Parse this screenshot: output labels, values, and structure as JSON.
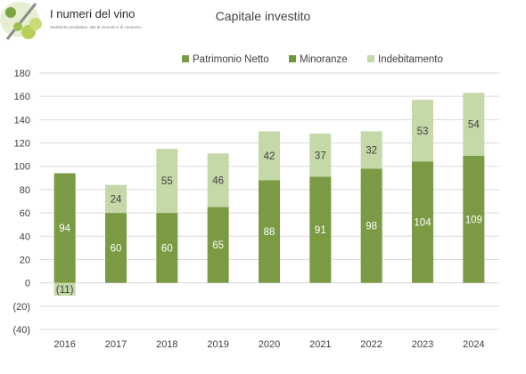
{
  "logo": {
    "title": "I numeri del vino",
    "tagline": "Statistiche produttive, dati di mercato e di consumo.",
    "mark_icon": "percent-grapes-icon"
  },
  "colors": {
    "patrimonio": "#7a9a44",
    "minoranze": "#6a9b3b",
    "indebitamento": "#c5d8a8",
    "grid": "#d9d9d9",
    "axis_text": "#404040"
  },
  "chart_data": {
    "type": "bar",
    "stacked": true,
    "title": "Capitale investito",
    "xlabel": "",
    "ylabel": "",
    "categories": [
      "2016",
      "2017",
      "2018",
      "2019",
      "2020",
      "2021",
      "2022",
      "2023",
      "2024"
    ],
    "series": [
      {
        "name": "Patrimonio Netto",
        "values": [
          94,
          60,
          60,
          65,
          88,
          91,
          98,
          104,
          109
        ],
        "labels": [
          "94",
          "60",
          "60",
          "65",
          "88",
          "91",
          "98",
          "104",
          "109"
        ],
        "color": "#7a9a44"
      },
      {
        "name": "Minoranze",
        "values": [
          0,
          0,
          0,
          0,
          0,
          0,
          0,
          0,
          0
        ],
        "labels": [
          "",
          "",
          "",
          "",
          "",
          "",
          "",
          "",
          ""
        ],
        "color": "#6a9b3b"
      },
      {
        "name": "Indebitamento",
        "values": [
          -11,
          24,
          55,
          46,
          42,
          37,
          32,
          53,
          54
        ],
        "labels": [
          "(11)",
          "24",
          "55",
          "46",
          "42",
          "37",
          "32",
          "53",
          "54"
        ],
        "color": "#c5d8a8"
      }
    ],
    "ylim": [
      -40,
      180
    ],
    "yticks": [
      -40,
      -20,
      0,
      20,
      40,
      60,
      80,
      100,
      120,
      140,
      160,
      180
    ],
    "ytick_labels": [
      "(40)",
      "(20)",
      "0",
      "20",
      "40",
      "60",
      "80",
      "100",
      "120",
      "140",
      "160",
      "180"
    ],
    "grid": true,
    "legend_position": "top"
  }
}
